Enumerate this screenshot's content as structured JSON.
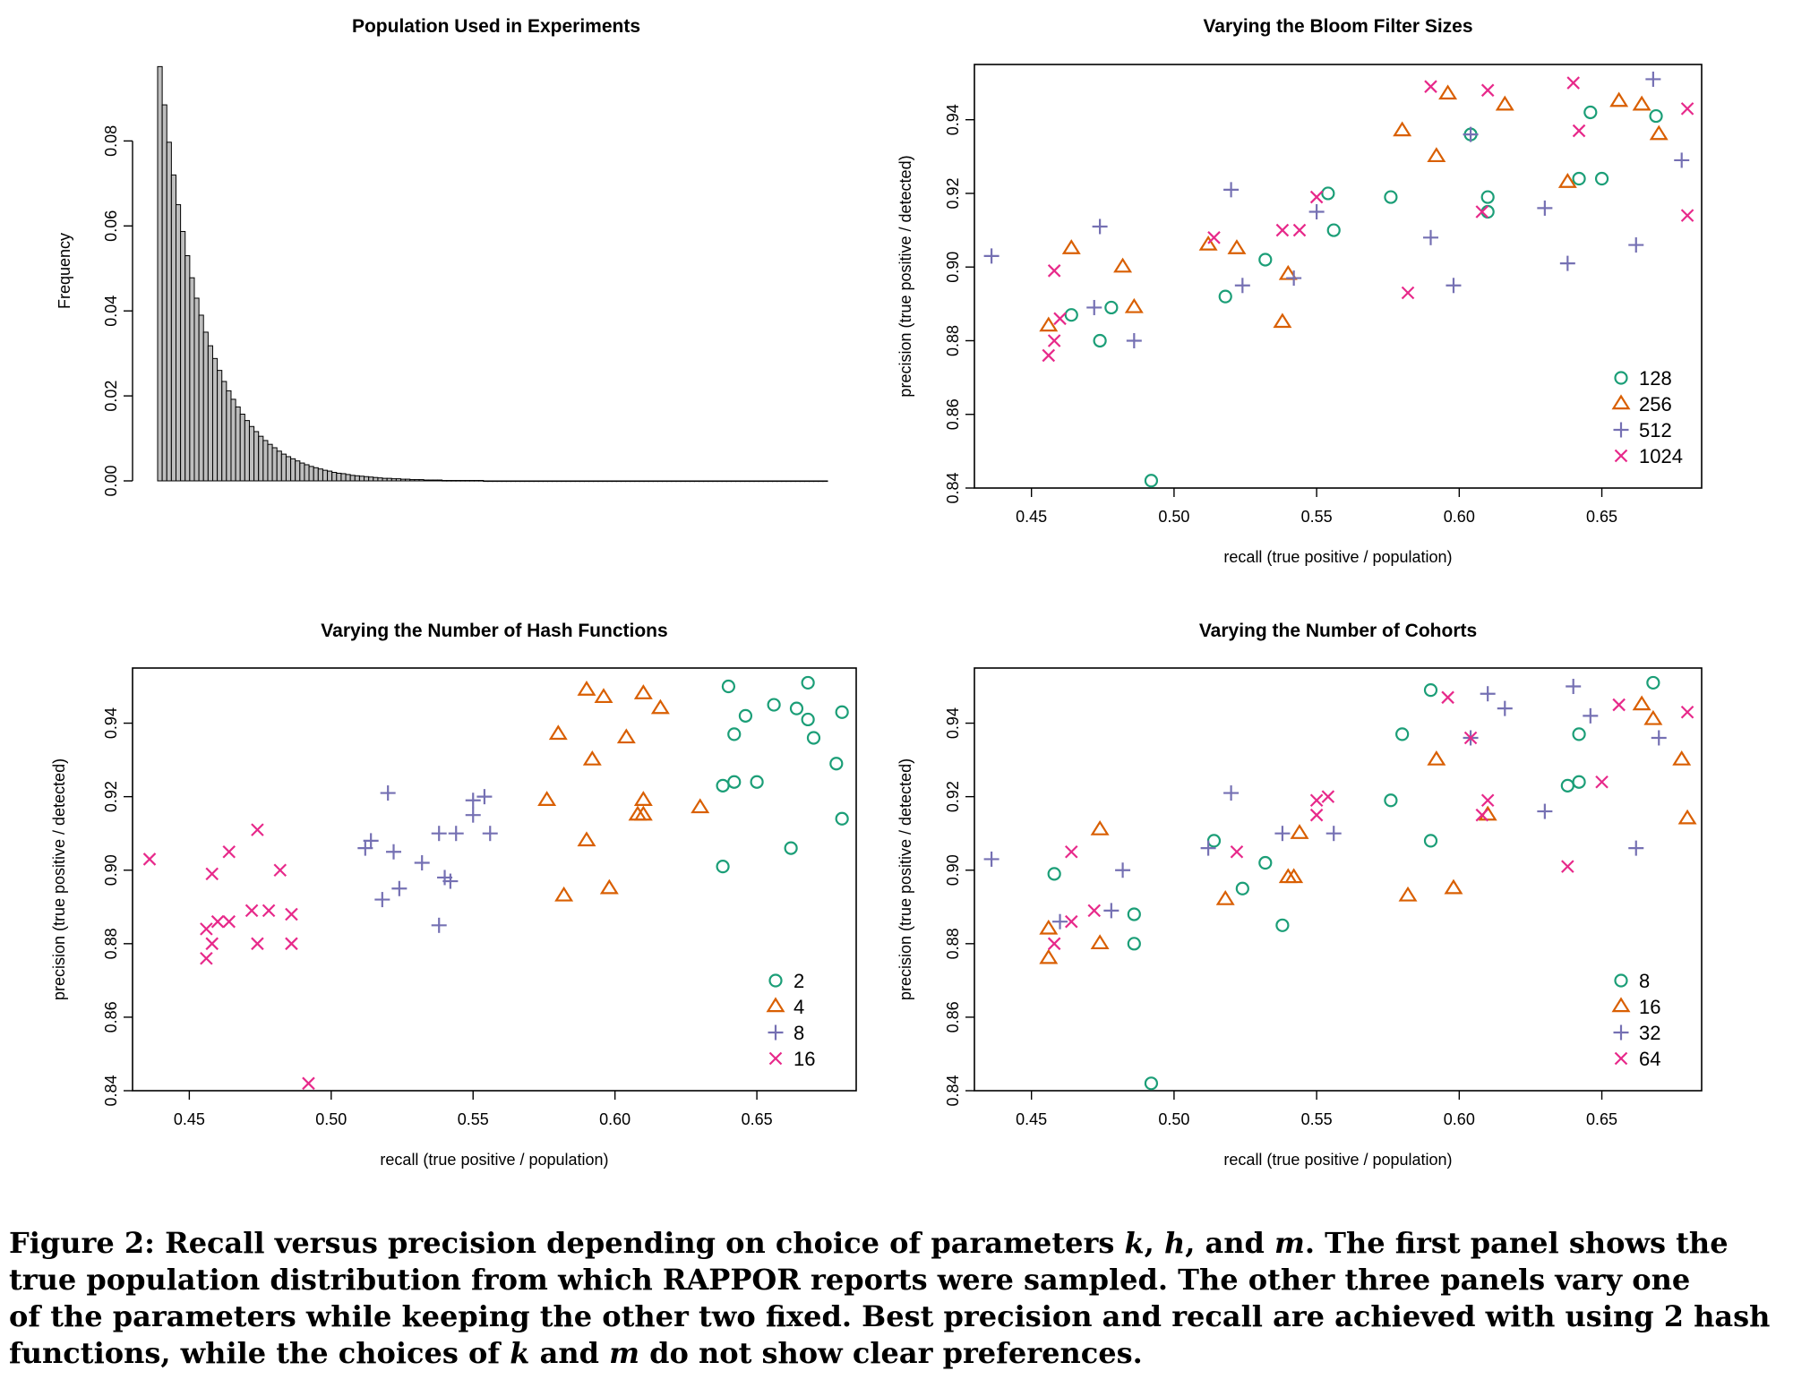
{
  "figure": {
    "caption": {
      "label": "Figure 2:",
      "line1_a": "Recall versus precision depending on choice of parameters",
      "var_k": "k",
      "comma1": ",",
      "var_h": "h",
      "and1": ", and",
      "var_m": "m",
      "line1_b": ". The first panel shows the",
      "line2": "true population distribution from which RAPPOR reports were sampled. The other three panels vary one",
      "line3": "of the parameters while keeping the other two fixed. Best precision and recall are achieved with using 2 hash",
      "line4_a": "functions, while the choices of",
      "var_k2": "k",
      "and2": "and",
      "var_m2": "m",
      "line4_b": "do not show clear preferences."
    },
    "colors": {
      "hist_bar": "#bebebe",
      "teal": "#1b9e77",
      "orange": "#d95f02",
      "purple": "#7570b3",
      "magenta": "#e7298a"
    }
  },
  "chart_data": [
    {
      "type": "bar",
      "title": "Population Used in Experiments",
      "xlabel": "",
      "ylabel": "Frequency",
      "yticks": [
        "0.00",
        "0.02",
        "0.04",
        "0.06",
        "0.08"
      ],
      "ylim": [
        0,
        0.098
      ],
      "values": [
        0.0975,
        0.0885,
        0.0797,
        0.072,
        0.065,
        0.0587,
        0.053,
        0.0478,
        0.043,
        0.039,
        0.035,
        0.0318,
        0.0288,
        0.026,
        0.0234,
        0.0212,
        0.0192,
        0.0174,
        0.0157,
        0.0142,
        0.0128,
        0.0116,
        0.0105,
        0.0095,
        0.0086,
        0.0078,
        0.007,
        0.0063,
        0.0057,
        0.0052,
        0.0047,
        0.0042,
        0.0038,
        0.0034,
        0.0031,
        0.0028,
        0.0025,
        0.0023,
        0.002,
        0.0018,
        0.0017,
        0.0015,
        0.0013,
        0.0012,
        0.0011,
        0.001,
        0.0009,
        0.0008,
        0.0007,
        0.0006,
        0.0006,
        0.0005,
        0.0005,
        0.0004,
        0.0004,
        0.0003,
        0.0003,
        0.0003,
        0.0002,
        0.0002,
        0.0002,
        0.0002,
        0.0001,
        0.0001,
        0.0001,
        0.0001,
        0.0001,
        0.0001,
        0.0001,
        0.0001,
        0.0001,
        0,
        0,
        0,
        0,
        0,
        0,
        0,
        0,
        0,
        0,
        0,
        0,
        0,
        0,
        0,
        0,
        0,
        0,
        0,
        0,
        0,
        0,
        0,
        0,
        0,
        0,
        0,
        0,
        0,
        0,
        0,
        0,
        0,
        0,
        0,
        0,
        0,
        0,
        0,
        0,
        0,
        0,
        0,
        0,
        0,
        0,
        0,
        0,
        0,
        0,
        0,
        0,
        0,
        0,
        0,
        0,
        0,
        0,
        0,
        0,
        0,
        0,
        0,
        0,
        0,
        0,
        0,
        0,
        0,
        0,
        0,
        0,
        0,
        0,
        0
      ]
    },
    {
      "type": "scatter",
      "title": "Varying the Bloom Filter Sizes",
      "xlabel": "recall (true positive / population)",
      "ylabel": "precision (true positive / detected)",
      "xlim": [
        0.43,
        0.685
      ],
      "ylim": [
        0.84,
        0.955
      ],
      "xticks": [
        "0.45",
        "0.50",
        "0.55",
        "0.60",
        "0.65"
      ],
      "yticks": [
        "0.84",
        "0.86",
        "0.88",
        "0.90",
        "0.92",
        "0.94"
      ],
      "legend_position": "bottom-right",
      "series": [
        {
          "name": "128",
          "marker": "circle",
          "color": "#1b9e77",
          "points": [
            [
              0.464,
              0.887
            ],
            [
              0.474,
              0.88
            ],
            [
              0.478,
              0.889
            ],
            [
              0.492,
              0.842
            ],
            [
              0.518,
              0.892
            ],
            [
              0.532,
              0.902
            ],
            [
              0.554,
              0.92
            ],
            [
              0.556,
              0.91
            ],
            [
              0.576,
              0.919
            ],
            [
              0.604,
              0.936
            ],
            [
              0.61,
              0.915
            ],
            [
              0.61,
              0.919
            ],
            [
              0.642,
              0.924
            ],
            [
              0.646,
              0.942
            ],
            [
              0.65,
              0.924
            ],
            [
              0.669,
              0.941
            ]
          ]
        },
        {
          "name": "256",
          "marker": "triangle",
          "color": "#d95f02",
          "points": [
            [
              0.456,
              0.884
            ],
            [
              0.464,
              0.905
            ],
            [
              0.482,
              0.9
            ],
            [
              0.486,
              0.889
            ],
            [
              0.512,
              0.906
            ],
            [
              0.522,
              0.905
            ],
            [
              0.538,
              0.885
            ],
            [
              0.54,
              0.898
            ],
            [
              0.58,
              0.937
            ],
            [
              0.592,
              0.93
            ],
            [
              0.596,
              0.947
            ],
            [
              0.616,
              0.944
            ],
            [
              0.638,
              0.923
            ],
            [
              0.656,
              0.945
            ],
            [
              0.664,
              0.944
            ],
            [
              0.67,
              0.936
            ]
          ]
        },
        {
          "name": "512",
          "marker": "plus",
          "color": "#7570b3",
          "points": [
            [
              0.436,
              0.903
            ],
            [
              0.472,
              0.889
            ],
            [
              0.474,
              0.911
            ],
            [
              0.486,
              0.88
            ],
            [
              0.52,
              0.921
            ],
            [
              0.524,
              0.895
            ],
            [
              0.542,
              0.897
            ],
            [
              0.55,
              0.915
            ],
            [
              0.59,
              0.908
            ],
            [
              0.598,
              0.895
            ],
            [
              0.604,
              0.936
            ],
            [
              0.63,
              0.916
            ],
            [
              0.638,
              0.901
            ],
            [
              0.662,
              0.906
            ],
            [
              0.668,
              0.951
            ],
            [
              0.678,
              0.929
            ]
          ]
        },
        {
          "name": "1024",
          "marker": "cross",
          "color": "#e7298a",
          "points": [
            [
              0.456,
              0.876
            ],
            [
              0.458,
              0.88
            ],
            [
              0.458,
              0.899
            ],
            [
              0.46,
              0.886
            ],
            [
              0.514,
              0.908
            ],
            [
              0.538,
              0.91
            ],
            [
              0.544,
              0.91
            ],
            [
              0.55,
              0.919
            ],
            [
              0.582,
              0.893
            ],
            [
              0.59,
              0.949
            ],
            [
              0.608,
              0.915
            ],
            [
              0.61,
              0.948
            ],
            [
              0.64,
              0.95
            ],
            [
              0.642,
              0.937
            ],
            [
              0.68,
              0.943
            ],
            [
              0.68,
              0.914
            ]
          ]
        }
      ]
    },
    {
      "type": "scatter",
      "title": "Varying the Number of Hash Functions",
      "xlabel": "recall (true positive / population)",
      "ylabel": "precision (true positive / detected)",
      "xlim": [
        0.43,
        0.685
      ],
      "ylim": [
        0.84,
        0.955
      ],
      "xticks": [
        "0.45",
        "0.50",
        "0.55",
        "0.60",
        "0.65"
      ],
      "yticks": [
        "0.84",
        "0.86",
        "0.88",
        "0.90",
        "0.92",
        "0.94"
      ],
      "legend_position": "bottom-right",
      "series": [
        {
          "name": "2",
          "marker": "circle",
          "color": "#1b9e77",
          "points": [
            [
              0.638,
              0.923
            ],
            [
              0.638,
              0.901
            ],
            [
              0.64,
              0.95
            ],
            [
              0.642,
              0.937
            ],
            [
              0.642,
              0.924
            ],
            [
              0.646,
              0.942
            ],
            [
              0.65,
              0.924
            ],
            [
              0.656,
              0.945
            ],
            [
              0.662,
              0.906
            ],
            [
              0.664,
              0.944
            ],
            [
              0.668,
              0.951
            ],
            [
              0.668,
              0.941
            ],
            [
              0.67,
              0.936
            ],
            [
              0.678,
              0.929
            ],
            [
              0.68,
              0.943
            ],
            [
              0.68,
              0.914
            ]
          ]
        },
        {
          "name": "4",
          "marker": "triangle",
          "color": "#d95f02",
          "points": [
            [
              0.576,
              0.919
            ],
            [
              0.58,
              0.937
            ],
            [
              0.582,
              0.893
            ],
            [
              0.59,
              0.949
            ],
            [
              0.59,
              0.908
            ],
            [
              0.592,
              0.93
            ],
            [
              0.596,
              0.947
            ],
            [
              0.598,
              0.895
            ],
            [
              0.604,
              0.936
            ],
            [
              0.608,
              0.915
            ],
            [
              0.61,
              0.948
            ],
            [
              0.61,
              0.919
            ],
            [
              0.61,
              0.915
            ],
            [
              0.616,
              0.944
            ],
            [
              0.63,
              0.917
            ]
          ]
        },
        {
          "name": "8",
          "marker": "plus",
          "color": "#7570b3",
          "points": [
            [
              0.512,
              0.906
            ],
            [
              0.514,
              0.908
            ],
            [
              0.518,
              0.892
            ],
            [
              0.52,
              0.921
            ],
            [
              0.522,
              0.905
            ],
            [
              0.524,
              0.895
            ],
            [
              0.532,
              0.902
            ],
            [
              0.538,
              0.91
            ],
            [
              0.538,
              0.885
            ],
            [
              0.54,
              0.898
            ],
            [
              0.542,
              0.897
            ],
            [
              0.544,
              0.91
            ],
            [
              0.55,
              0.915
            ],
            [
              0.55,
              0.919
            ],
            [
              0.554,
              0.92
            ],
            [
              0.556,
              0.91
            ]
          ]
        },
        {
          "name": "16",
          "marker": "cross",
          "color": "#e7298a",
          "points": [
            [
              0.436,
              0.903
            ],
            [
              0.456,
              0.884
            ],
            [
              0.456,
              0.876
            ],
            [
              0.458,
              0.899
            ],
            [
              0.458,
              0.88
            ],
            [
              0.46,
              0.886
            ],
            [
              0.464,
              0.886
            ],
            [
              0.464,
              0.905
            ],
            [
              0.472,
              0.889
            ],
            [
              0.474,
              0.88
            ],
            [
              0.474,
              0.911
            ],
            [
              0.478,
              0.889
            ],
            [
              0.482,
              0.9
            ],
            [
              0.486,
              0.88
            ],
            [
              0.486,
              0.888
            ],
            [
              0.492,
              0.842
            ]
          ]
        }
      ]
    },
    {
      "type": "scatter",
      "title": "Varying the Number of Cohorts",
      "xlabel": "recall (true positive / population)",
      "ylabel": "precision (true positive / detected)",
      "xlim": [
        0.43,
        0.685
      ],
      "ylim": [
        0.84,
        0.955
      ],
      "xticks": [
        "0.45",
        "0.50",
        "0.55",
        "0.60",
        "0.65"
      ],
      "yticks": [
        "0.84",
        "0.86",
        "0.88",
        "0.90",
        "0.92",
        "0.94"
      ],
      "legend_position": "bottom-right",
      "series": [
        {
          "name": "8",
          "marker": "circle",
          "color": "#1b9e77",
          "points": [
            [
              0.458,
              0.899
            ],
            [
              0.486,
              0.888
            ],
            [
              0.486,
              0.88
            ],
            [
              0.492,
              0.842
            ],
            [
              0.514,
              0.908
            ],
            [
              0.524,
              0.895
            ],
            [
              0.532,
              0.902
            ],
            [
              0.538,
              0.885
            ],
            [
              0.58,
              0.937
            ],
            [
              0.576,
              0.919
            ],
            [
              0.59,
              0.949
            ],
            [
              0.59,
              0.908
            ],
            [
              0.638,
              0.923
            ],
            [
              0.642,
              0.924
            ],
            [
              0.642,
              0.937
            ],
            [
              0.668,
              0.951
            ]
          ]
        },
        {
          "name": "16",
          "marker": "triangle",
          "color": "#d95f02",
          "points": [
            [
              0.456,
              0.884
            ],
            [
              0.456,
              0.876
            ],
            [
              0.474,
              0.911
            ],
            [
              0.474,
              0.88
            ],
            [
              0.518,
              0.892
            ],
            [
              0.54,
              0.898
            ],
            [
              0.542,
              0.898
            ],
            [
              0.544,
              0.91
            ],
            [
              0.582,
              0.893
            ],
            [
              0.592,
              0.93
            ],
            [
              0.598,
              0.895
            ],
            [
              0.61,
              0.915
            ],
            [
              0.664,
              0.945
            ],
            [
              0.668,
              0.941
            ],
            [
              0.678,
              0.93
            ],
            [
              0.68,
              0.914
            ]
          ]
        },
        {
          "name": "32",
          "marker": "plus",
          "color": "#7570b3",
          "points": [
            [
              0.436,
              0.903
            ],
            [
              0.46,
              0.886
            ],
            [
              0.478,
              0.889
            ],
            [
              0.482,
              0.9
            ],
            [
              0.512,
              0.906
            ],
            [
              0.52,
              0.921
            ],
            [
              0.538,
              0.91
            ],
            [
              0.556,
              0.91
            ],
            [
              0.604,
              0.936
            ],
            [
              0.61,
              0.948
            ],
            [
              0.616,
              0.944
            ],
            [
              0.63,
              0.916
            ],
            [
              0.64,
              0.95
            ],
            [
              0.646,
              0.942
            ],
            [
              0.662,
              0.906
            ],
            [
              0.67,
              0.936
            ]
          ]
        },
        {
          "name": "64",
          "marker": "cross",
          "color": "#e7298a",
          "points": [
            [
              0.458,
              0.88
            ],
            [
              0.464,
              0.886
            ],
            [
              0.464,
              0.905
            ],
            [
              0.472,
              0.889
            ],
            [
              0.522,
              0.905
            ],
            [
              0.55,
              0.919
            ],
            [
              0.55,
              0.915
            ],
            [
              0.554,
              0.92
            ],
            [
              0.596,
              0.947
            ],
            [
              0.604,
              0.936
            ],
            [
              0.608,
              0.915
            ],
            [
              0.61,
              0.919
            ],
            [
              0.638,
              0.901
            ],
            [
              0.65,
              0.924
            ],
            [
              0.656,
              0.945
            ],
            [
              0.68,
              0.943
            ]
          ]
        }
      ]
    }
  ]
}
